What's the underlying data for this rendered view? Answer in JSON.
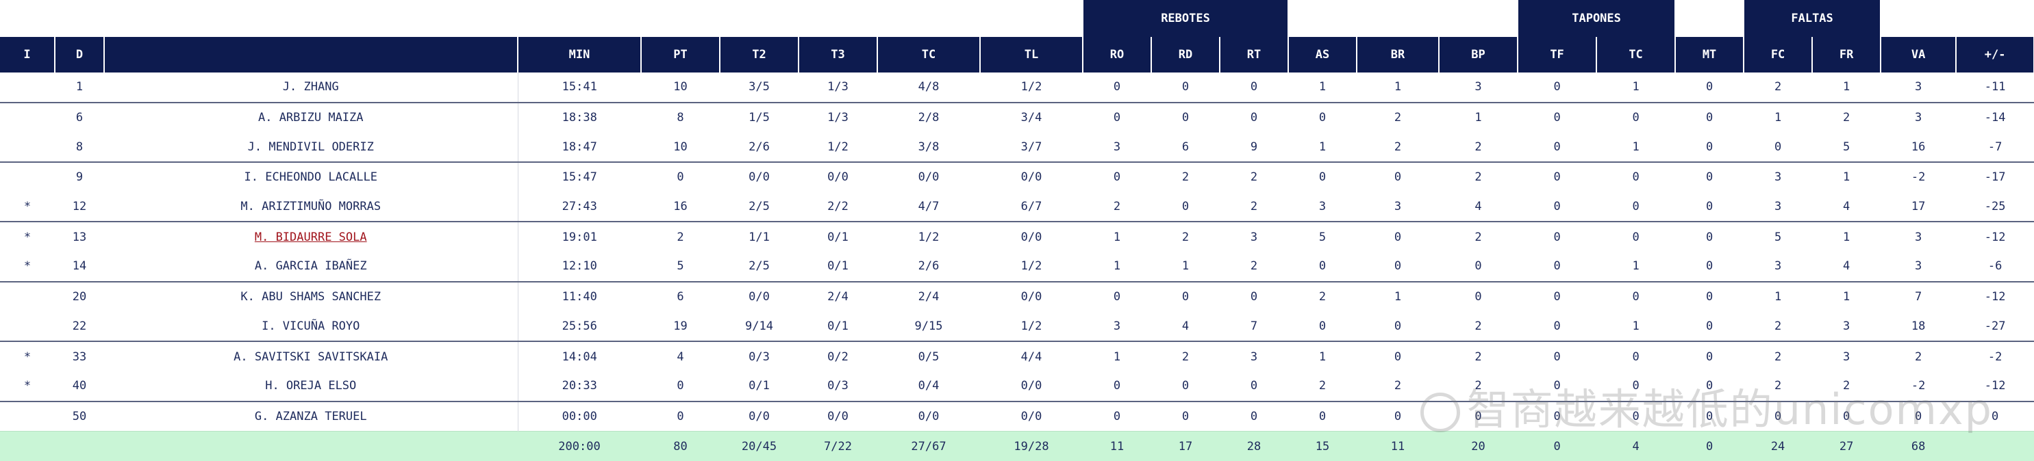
{
  "groups": {
    "rebotes": "REBOTES",
    "tapones": "TAPONES",
    "faltas": "FALTAS"
  },
  "columns": [
    "I",
    "D",
    "",
    "MIN",
    "PT",
    "T2",
    "T3",
    "TC",
    "TL",
    "RO",
    "RD",
    "RT",
    "AS",
    "BR",
    "BP",
    "TF",
    "TC",
    "MT",
    "FC",
    "FR",
    "VA",
    "+/-"
  ],
  "rows": [
    [
      "",
      "1",
      "J. ZHANG",
      "15:41",
      "10",
      "3/5",
      "1/3",
      "4/8",
      "1/2",
      "0",
      "0",
      "0",
      "1",
      "1",
      "3",
      "0",
      "1",
      "0",
      "2",
      "1",
      "3",
      "-11"
    ],
    [
      "",
      "6",
      "A. ARBIZU MAIZA",
      "18:38",
      "8",
      "1/5",
      "1/3",
      "2/8",
      "3/4",
      "0",
      "0",
      "0",
      "0",
      "2",
      "1",
      "0",
      "0",
      "0",
      "1",
      "2",
      "3",
      "-14"
    ],
    [
      "",
      "8",
      "J. MENDIVIL ODERIZ",
      "18:47",
      "10",
      "2/6",
      "1/2",
      "3/8",
      "3/7",
      "3",
      "6",
      "9",
      "1",
      "2",
      "2",
      "0",
      "1",
      "0",
      "0",
      "5",
      "16",
      "-7"
    ],
    [
      "",
      "9",
      "I. ECHEONDO LACALLE",
      "15:47",
      "0",
      "0/0",
      "0/0",
      "0/0",
      "0/0",
      "0",
      "2",
      "2",
      "0",
      "0",
      "2",
      "0",
      "0",
      "0",
      "3",
      "1",
      "-2",
      "-17"
    ],
    [
      "*",
      "12",
      "M. ARIZTIMUÑO MORRAS",
      "27:43",
      "16",
      "2/5",
      "2/2",
      "4/7",
      "6/7",
      "2",
      "0",
      "2",
      "3",
      "3",
      "4",
      "0",
      "0",
      "0",
      "3",
      "4",
      "17",
      "-25"
    ],
    [
      "*",
      "13",
      "M. BIDAURRE SOLA",
      "19:01",
      "2",
      "1/1",
      "0/1",
      "1/2",
      "0/0",
      "1",
      "2",
      "3",
      "5",
      "0",
      "2",
      "0",
      "0",
      "0",
      "5",
      "1",
      "3",
      "-12"
    ],
    [
      "*",
      "14",
      "A. GARCIA IBAÑEZ",
      "12:10",
      "5",
      "2/5",
      "0/1",
      "2/6",
      "1/2",
      "1",
      "1",
      "2",
      "0",
      "0",
      "0",
      "0",
      "1",
      "0",
      "3",
      "4",
      "3",
      "-6"
    ],
    [
      "",
      "20",
      "K. ABU SHAMS SANCHEZ",
      "11:40",
      "6",
      "0/0",
      "2/4",
      "2/4",
      "0/0",
      "0",
      "0",
      "0",
      "2",
      "1",
      "0",
      "0",
      "0",
      "0",
      "1",
      "1",
      "7",
      "-12"
    ],
    [
      "",
      "22",
      "I. VICUÑA ROYO",
      "25:56",
      "19",
      "9/14",
      "0/1",
      "9/15",
      "1/2",
      "3",
      "4",
      "7",
      "0",
      "0",
      "2",
      "0",
      "1",
      "0",
      "2",
      "3",
      "18",
      "-27"
    ],
    [
      "*",
      "33",
      "A. SAVITSKI SAVITSKAIA",
      "14:04",
      "4",
      "0/3",
      "0/2",
      "0/5",
      "4/4",
      "1",
      "2",
      "3",
      "1",
      "0",
      "2",
      "0",
      "0",
      "0",
      "2",
      "3",
      "2",
      "-2"
    ],
    [
      "*",
      "40",
      "H. OREJA ELSO",
      "20:33",
      "0",
      "0/1",
      "0/3",
      "0/4",
      "0/0",
      "0",
      "0",
      "0",
      "2",
      "2",
      "2",
      "0",
      "0",
      "0",
      "2",
      "2",
      "-2",
      "-12"
    ],
    [
      "",
      "50",
      "G. AZANZA TERUEL",
      "00:00",
      "0",
      "0/0",
      "0/0",
      "0/0",
      "0/0",
      "0",
      "0",
      "0",
      "0",
      "0",
      "0",
      "0",
      "0",
      "0",
      "0",
      "0",
      "0",
      "0"
    ]
  ],
  "totals": [
    "",
    "",
    "",
    "200:00",
    "80",
    "20/45",
    "7/22",
    "27/67",
    "19/28",
    "11",
    "17",
    "28",
    "15",
    "11",
    "20",
    "0",
    "4",
    "0",
    "24",
    "27",
    "68",
    ""
  ],
  "watermark": "智商越来越低的unicomxp"
}
